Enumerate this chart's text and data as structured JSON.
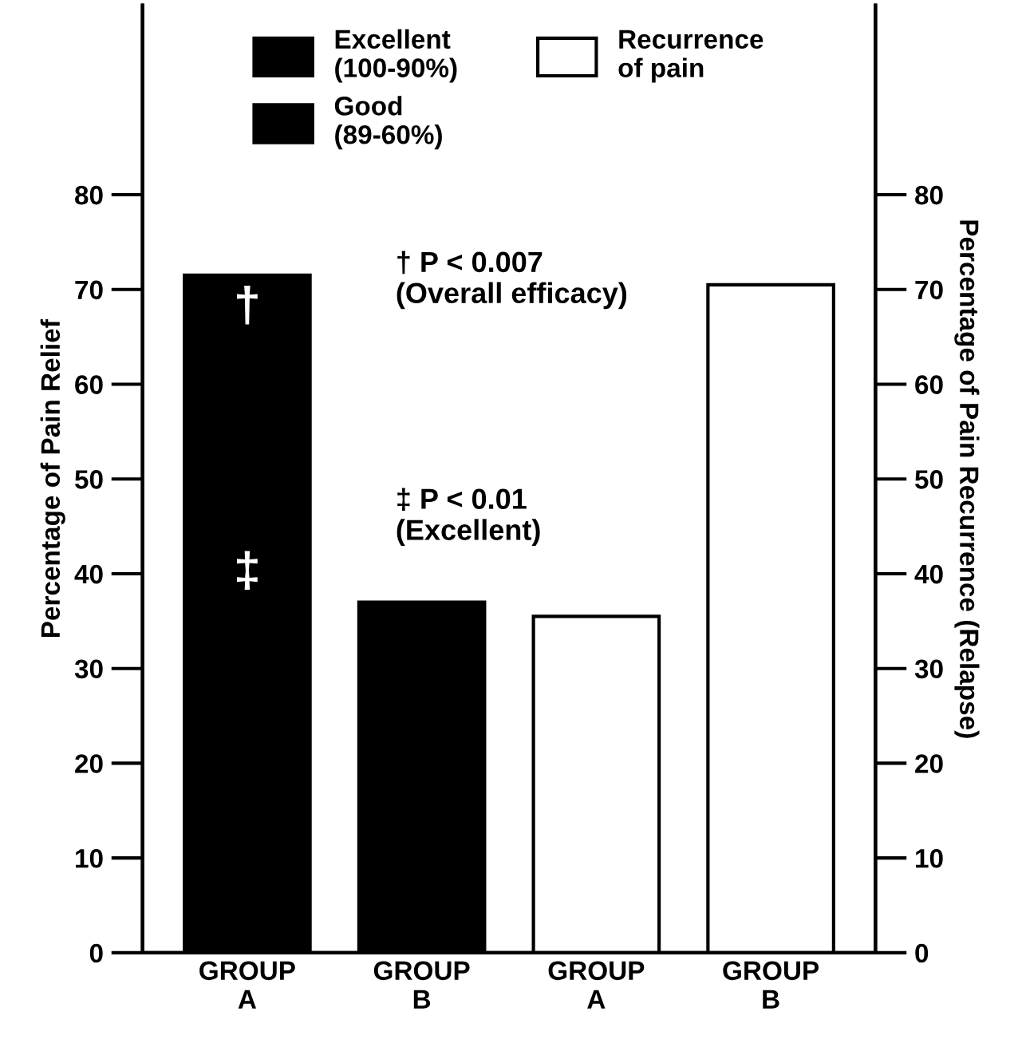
{
  "chart_data": {
    "type": "bar",
    "categories": [
      "GROUP\nA",
      "GROUP\nB",
      "GROUP\nA",
      "GROUP\nB"
    ],
    "series": [
      {
        "name": "Excellent\n(100-90%)",
        "color": "#000000",
        "values": [
          71.5,
          37,
          null,
          null
        ]
      },
      {
        "name": "Good\n(89-60%)",
        "color": "#000000",
        "values": [
          null,
          null,
          null,
          null
        ]
      },
      {
        "name": "Recurrence\nof pain",
        "color": "#ffffff",
        "values": [
          null,
          null,
          35.5,
          70.5
        ],
        "axis": "y2"
      }
    ],
    "ylabel": "Percentage of Pain Relief",
    "y2label": "Percentage of Pain Recurrence (Relapse)",
    "ylim": [
      0,
      100
    ],
    "yticks": [
      0,
      10,
      20,
      30,
      40,
      50,
      60,
      70,
      80
    ],
    "y2lim": [
      0,
      100
    ],
    "y2ticks": [
      0,
      10,
      20,
      30,
      40,
      50,
      60,
      70,
      80
    ],
    "annotations": [
      "† P < 0.007\n(Overall efficacy)",
      "‡ P < 0.01\n(Excellent)",
      "†",
      "‡"
    ],
    "legend": "top",
    "grid": false
  }
}
